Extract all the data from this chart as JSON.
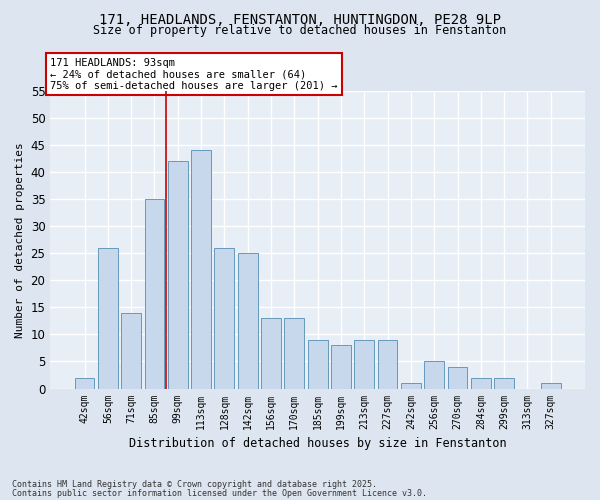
{
  "title_line1": "171, HEADLANDS, FENSTANTON, HUNTINGDON, PE28 9LP",
  "title_line2": "Size of property relative to detached houses in Fenstanton",
  "xlabel": "Distribution of detached houses by size in Fenstanton",
  "ylabel": "Number of detached properties",
  "categories": [
    "42sqm",
    "56sqm",
    "71sqm",
    "85sqm",
    "99sqm",
    "113sqm",
    "128sqm",
    "142sqm",
    "156sqm",
    "170sqm",
    "185sqm",
    "199sqm",
    "213sqm",
    "227sqm",
    "242sqm",
    "256sqm",
    "270sqm",
    "284sqm",
    "299sqm",
    "313sqm",
    "327sqm"
  ],
  "values": [
    2,
    26,
    14,
    35,
    42,
    44,
    26,
    25,
    13,
    13,
    9,
    8,
    9,
    9,
    1,
    5,
    4,
    2,
    2,
    0,
    1
  ],
  "bar_color": "#c8d8ec",
  "bar_edge_color": "#6699bb",
  "vline_x": 3.5,
  "vline_color": "#cc0000",
  "annotation_text": "171 HEADLANDS: 93sqm\n← 24% of detached houses are smaller (64)\n75% of semi-detached houses are larger (201) →",
  "annotation_box_facecolor": "#ffffff",
  "annotation_box_edgecolor": "#cc0000",
  "ylim_min": 0,
  "ylim_max": 55,
  "yticks": [
    0,
    5,
    10,
    15,
    20,
    25,
    30,
    35,
    40,
    45,
    50,
    55
  ],
  "background_color": "#dde6f0",
  "plot_background_color": "#e8eef6",
  "grid_color": "#ffffff",
  "footer_line1": "Contains HM Land Registry data © Crown copyright and database right 2025.",
  "footer_line2": "Contains public sector information licensed under the Open Government Licence v3.0."
}
